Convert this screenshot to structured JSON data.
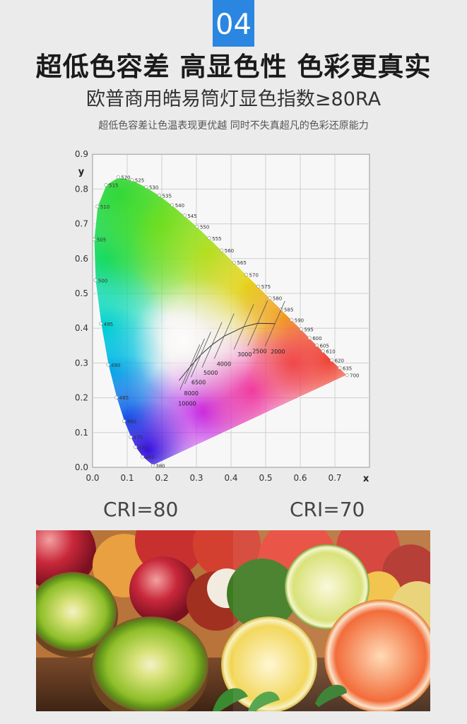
{
  "header": {
    "number": "04",
    "headline": "超低色容差 高显色性 色彩更真实",
    "subhead": "欧普商用皓易筒灯显色指数≥80RA",
    "tagline": "超低色容差让色温表现更优越 同时不失真超凡的色彩还原能力"
  },
  "chart_data": {
    "type": "chromaticity-diagram",
    "xlabel": "x",
    "ylabel": "y",
    "xlim": [
      0,
      0.8
    ],
    "ylim": [
      0,
      0.9
    ],
    "x_ticks": [
      "0.0",
      "0.1",
      "0.2",
      "0.3",
      "0.4",
      "0.5",
      "0.6",
      "0.7"
    ],
    "y_ticks": [
      "0.0",
      "0.1",
      "0.2",
      "0.3",
      "0.4",
      "0.5",
      "0.6",
      "0.7",
      "0.8",
      "0.9"
    ],
    "spectral_locus": [
      {
        "nm": "380",
        "x": 0.174,
        "y": 0.005
      },
      {
        "nm": "460",
        "x": 0.144,
        "y": 0.03
      },
      {
        "nm": "470",
        "x": 0.124,
        "y": 0.058
      },
      {
        "nm": "475",
        "x": 0.11,
        "y": 0.087
      },
      {
        "nm": "480",
        "x": 0.091,
        "y": 0.133
      },
      {
        "nm": "485",
        "x": 0.069,
        "y": 0.201
      },
      {
        "nm": "490",
        "x": 0.045,
        "y": 0.295
      },
      {
        "nm": "495",
        "x": 0.024,
        "y": 0.413
      },
      {
        "nm": "500",
        "x": 0.008,
        "y": 0.538
      },
      {
        "nm": "505",
        "x": 0.004,
        "y": 0.655
      },
      {
        "nm": "510",
        "x": 0.014,
        "y": 0.75
      },
      {
        "nm": "515",
        "x": 0.039,
        "y": 0.812
      },
      {
        "nm": "520",
        "x": 0.074,
        "y": 0.834
      },
      {
        "nm": "525",
        "x": 0.114,
        "y": 0.826
      },
      {
        "nm": "530",
        "x": 0.155,
        "y": 0.806
      },
      {
        "nm": "535",
        "x": 0.193,
        "y": 0.782
      },
      {
        "nm": "540",
        "x": 0.23,
        "y": 0.754
      },
      {
        "nm": "545",
        "x": 0.266,
        "y": 0.724
      },
      {
        "nm": "550",
        "x": 0.302,
        "y": 0.692
      },
      {
        "nm": "555",
        "x": 0.337,
        "y": 0.659
      },
      {
        "nm": "560",
        "x": 0.373,
        "y": 0.624
      },
      {
        "nm": "565",
        "x": 0.409,
        "y": 0.589
      },
      {
        "nm": "570",
        "x": 0.444,
        "y": 0.554
      },
      {
        "nm": "575",
        "x": 0.479,
        "y": 0.52
      },
      {
        "nm": "580",
        "x": 0.512,
        "y": 0.487
      },
      {
        "nm": "585",
        "x": 0.545,
        "y": 0.454
      },
      {
        "nm": "590",
        "x": 0.575,
        "y": 0.424
      },
      {
        "nm": "595",
        "x": 0.603,
        "y": 0.397
      },
      {
        "nm": "600",
        "x": 0.627,
        "y": 0.372
      },
      {
        "nm": "605",
        "x": 0.648,
        "y": 0.351
      },
      {
        "nm": "610",
        "x": 0.666,
        "y": 0.334
      },
      {
        "nm": "620",
        "x": 0.691,
        "y": 0.308
      },
      {
        "nm": "635",
        "x": 0.714,
        "y": 0.286
      },
      {
        "nm": "700",
        "x": 0.735,
        "y": 0.265
      }
    ],
    "planckian_locus": [
      {
        "cct": "10000",
        "x": 0.281,
        "y": 0.288
      },
      {
        "cct": "8000",
        "x": 0.295,
        "y": 0.305
      },
      {
        "cct": "6500",
        "x": 0.313,
        "y": 0.324
      },
      {
        "cct": "5000",
        "x": 0.345,
        "y": 0.352
      },
      {
        "cct": "4000",
        "x": 0.38,
        "y": 0.377
      },
      {
        "cct": "3000",
        "x": 0.437,
        "y": 0.404
      },
      {
        "cct": "2500",
        "x": 0.477,
        "y": 0.414
      },
      {
        "cct": "2000",
        "x": 0.527,
        "y": 0.413
      }
    ],
    "planckian_curve": [
      [
        0.25,
        0.25
      ],
      [
        0.281,
        0.288
      ],
      [
        0.313,
        0.324
      ],
      [
        0.345,
        0.352
      ],
      [
        0.38,
        0.377
      ],
      [
        0.437,
        0.404
      ],
      [
        0.477,
        0.414
      ],
      [
        0.527,
        0.413
      ]
    ]
  },
  "comparison": {
    "left_label": "CRI=80",
    "right_label": "CRI=70"
  }
}
